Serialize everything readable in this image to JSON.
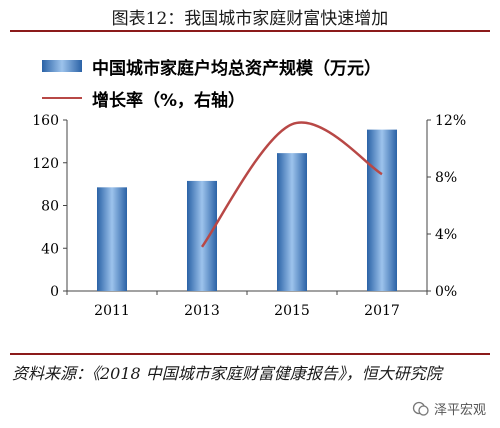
{
  "title": "图表12：我国城市家庭财富快速增加",
  "legend": {
    "bar_label": "中国城市家庭户均总资产规模（万元）",
    "line_label": "增长率（%，右轴）"
  },
  "source": "资料来源：《2018 中国城市家庭财富健康报告》，恒大研究院",
  "watermark": "泽平宏观",
  "colors": {
    "bar": "#2a62a6",
    "bar_highlight": "#9dc3ec",
    "line": "#b84846",
    "rule": "#8b1a1a"
  },
  "chart_data": {
    "type": "bar",
    "categories": [
      "2011",
      "2013",
      "2015",
      "2017"
    ],
    "series": [
      {
        "name": "中国城市家庭户均总资产规模（万元）",
        "type": "bar",
        "axis": "left",
        "values": [
          97,
          103,
          129,
          151
        ]
      },
      {
        "name": "增长率（%，右轴）",
        "type": "line",
        "axis": "right",
        "values": [
          null,
          3.1,
          11.7,
          8.2
        ]
      }
    ],
    "ylim": [
      0,
      160
    ],
    "yticks": [
      "0",
      "40",
      "80",
      "120",
      "160"
    ],
    "y2lim": [
      0,
      12
    ],
    "y2ticks": [
      "0%",
      "4%",
      "8%",
      "12%"
    ],
    "grid": false,
    "legend_position": "top-left"
  }
}
